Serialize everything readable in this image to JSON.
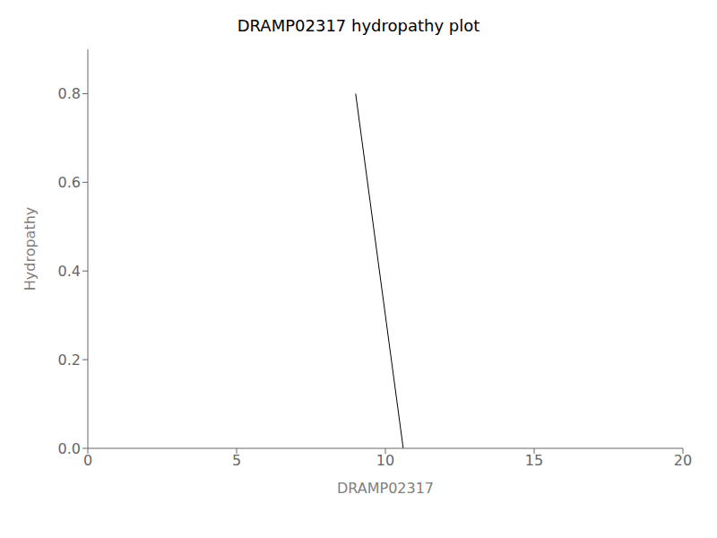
{
  "chart_data": {
    "type": "line",
    "title": "DRAMP02317 hydropathy plot",
    "x_label": "DRAMP02317",
    "y_label": "Hydropathy",
    "x": [
      9.0,
      10.6
    ],
    "values": [
      0.8,
      0.0
    ],
    "color": "#000000",
    "xlim": [
      0,
      20
    ],
    "ylim": [
      0,
      0.9
    ],
    "xticks": [
      0,
      5,
      10,
      15,
      20
    ],
    "yticks": [
      {
        "value": 0,
        "label": "0.0"
      },
      0.2,
      0.4,
      0.6,
      0.8
    ]
  }
}
